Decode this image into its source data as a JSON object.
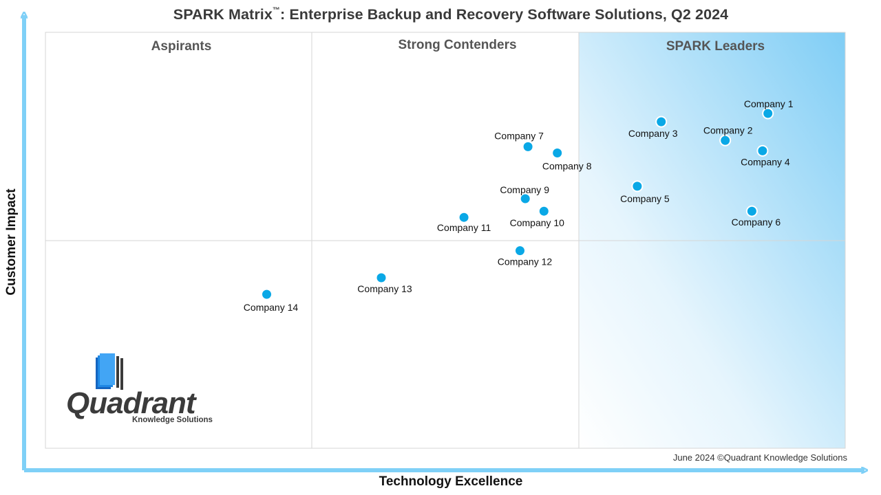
{
  "title_main": "SPARK Matrix",
  "title_tm": "™",
  "title_rest": ": Enterprise Backup and Recovery Software Solutions, Q2 2024",
  "quadrants": {
    "aspirants": "Aspirants",
    "contenders": "Strong Contenders",
    "leaders": "SPARK Leaders"
  },
  "footnote": "June 2024 ©Quadrant Knowledge Solutions",
  "logo": {
    "word": "Quadrant",
    "sub": "Knowledge Solutions"
  },
  "colors": {
    "axis": "#7fd0f7",
    "point": "#0aa8e6",
    "leaders_light": "#e6f5fd",
    "leaders_dark": "#7fcdf5"
  },
  "chart_data": {
    "type": "scatter",
    "xlabel": "Technology Excellence",
    "ylabel": "Customer Impact",
    "xlim": [
      0,
      3
    ],
    "ylim": [
      0,
      2
    ],
    "grid": true,
    "points": [
      {
        "label": "Company 1",
        "x": 2.71,
        "y": 1.61
      },
      {
        "label": "Company 2",
        "x": 2.55,
        "y": 1.48
      },
      {
        "label": "Company 3",
        "x": 2.31,
        "y": 1.57
      },
      {
        "label": "Company 4",
        "x": 2.69,
        "y": 1.43
      },
      {
        "label": "Company 5",
        "x": 2.22,
        "y": 1.26
      },
      {
        "label": "Company 6",
        "x": 2.65,
        "y": 1.14
      },
      {
        "label": "Company 7",
        "x": 1.81,
        "y": 1.45
      },
      {
        "label": "Company 8",
        "x": 1.92,
        "y": 1.42
      },
      {
        "label": "Company 9",
        "x": 1.8,
        "y": 1.2
      },
      {
        "label": "Company 10",
        "x": 1.87,
        "y": 1.14
      },
      {
        "label": "Company 11",
        "x": 1.57,
        "y": 1.11
      },
      {
        "label": "Company 12",
        "x": 1.78,
        "y": 0.95
      },
      {
        "label": "Company 13",
        "x": 1.26,
        "y": 0.82
      },
      {
        "label": "Company 14",
        "x": 0.83,
        "y": 0.74
      }
    ]
  }
}
